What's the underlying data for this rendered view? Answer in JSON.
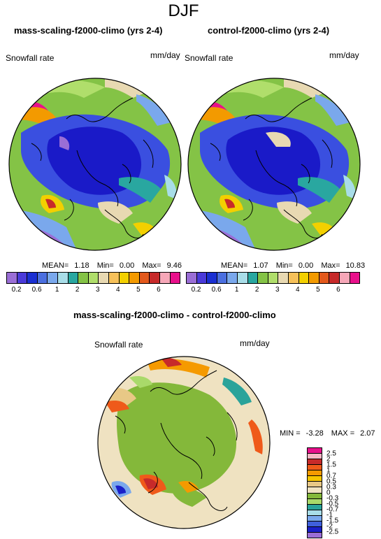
{
  "title": "DJF",
  "panels": [
    {
      "title": "mass-scaling-f2000-climo (yrs 2-4)",
      "variable_label": "Snowfall rate",
      "units_label": "mm/day",
      "stats": {
        "mean_label": "MEAN=",
        "mean": "1.18",
        "min_label": "Min=",
        "min": "0.00",
        "max_label": "Max=",
        "max": "9.46"
      }
    },
    {
      "title": "control-f2000-climo (yrs 2-4)",
      "variable_label": "Snowfall rate",
      "units_label": "mm/day",
      "stats": {
        "mean_label": "MEAN=",
        "mean": "1.07",
        "min_label": "Min=",
        "min": "0.00",
        "max_label": "Max=",
        "max": "10.83"
      }
    }
  ],
  "diff_panel": {
    "title": "mass-scaling-f2000-climo - control-f2000-climo",
    "variable_label": "Snowfall rate",
    "units_label": "mm/day",
    "stats": {
      "min_label": "MIN =",
      "min": "-3.28",
      "max_label": "MAX =",
      "max": "2.07"
    }
  },
  "colorbar_abs": {
    "tick_labels": [
      "0.2",
      "0.6",
      "1",
      "2",
      "3",
      "4",
      "5",
      "6"
    ],
    "levels": [
      0.2,
      0.4,
      0.6,
      0.8,
      1,
      1.5,
      2,
      2.5,
      3,
      3.5,
      4,
      4.5,
      5,
      5.5,
      6
    ],
    "colors": [
      "#9a6ed6",
      "#4a3ad9",
      "#1a2fd2",
      "#4b6fe0",
      "#7aa8ec",
      "#a8dde8",
      "#29a7a0",
      "#84c346",
      "#b0de6b",
      "#e8d9b2",
      "#f6c15a",
      "#f3d000",
      "#f39a00",
      "#e3591c",
      "#c72a2a",
      "#f6a7b8",
      "#e8108b"
    ]
  },
  "colorbar_diff": {
    "tick_labels": [
      "2.5",
      "2",
      "1.5",
      "1",
      "0.7",
      "0.5",
      "0.3",
      "0",
      "-0.3",
      "-0.5",
      "-0.7",
      "-1",
      "-1.5",
      "-2",
      "-2.5"
    ],
    "colors": [
      "#e8108b",
      "#f6b6c4",
      "#c72a2a",
      "#ef5a1a",
      "#f59a00",
      "#f6c600",
      "#e8c886",
      "#efe2c1",
      "#84b83a",
      "#a9d96a",
      "#2aa39a",
      "#a8dde8",
      "#7aa8ec",
      "#3f60dc",
      "#1a1fc8",
      "#9a6ed6"
    ]
  },
  "map_colors": {
    "pole_dark": "#1a1ac8",
    "pole_blue": "#3a4fe0",
    "light_blue": "#7aa8ec",
    "teal": "#29a7a0",
    "green": "#84c346",
    "light_green": "#b0de6b",
    "sand": "#e8d9b2",
    "yellow": "#f3d000",
    "orange": "#f39a00",
    "red": "#c72a2a",
    "magenta": "#e8108b",
    "diff_bg": "#efe2c1",
    "diff_green": "#84b83a"
  }
}
